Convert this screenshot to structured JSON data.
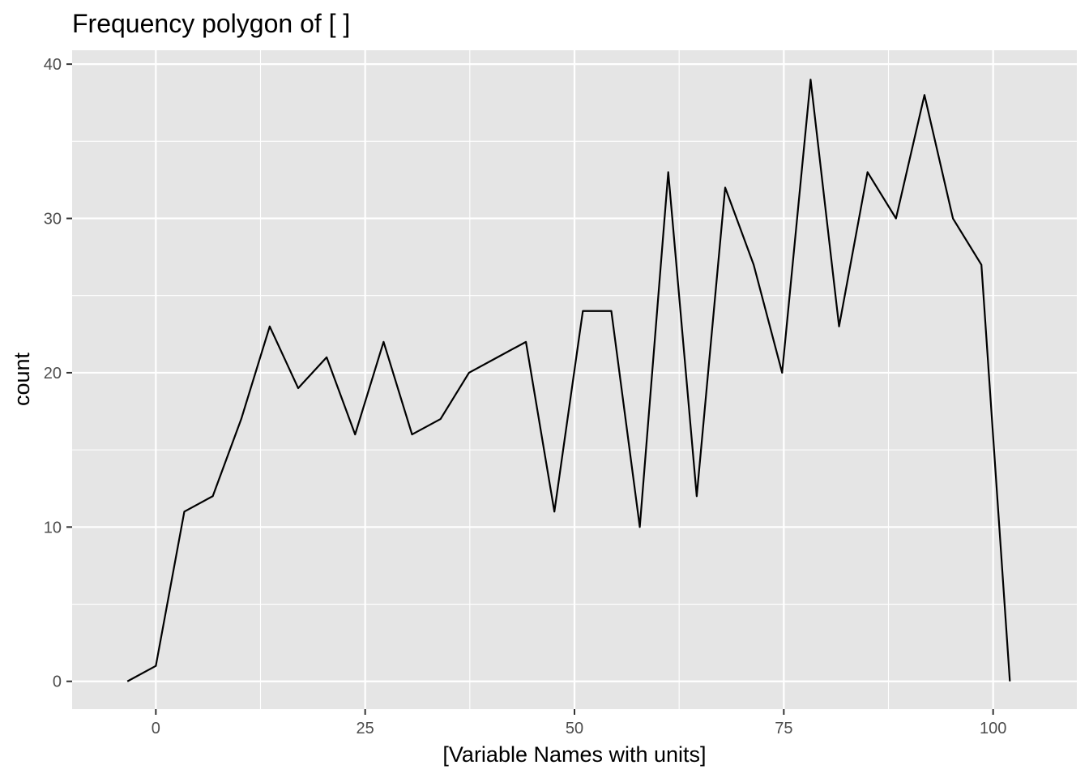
{
  "chart_data": {
    "type": "line",
    "title": "Frequency polygon of [ ]",
    "xlabel": "[Variable Names with units]",
    "ylabel": "count",
    "xlim": [
      -10,
      110
    ],
    "ylim": [
      -1.8,
      40.9
    ],
    "x_ticks": [
      0,
      25,
      50,
      75,
      100
    ],
    "x_tick_labels": [
      "0",
      "25",
      "50",
      "75",
      "100"
    ],
    "x_minor_ticks": [
      12.5,
      37.5,
      62.5,
      87.5
    ],
    "y_ticks": [
      0,
      10,
      20,
      30,
      40
    ],
    "y_tick_labels": [
      "0",
      "10",
      "20",
      "30",
      "40"
    ],
    "y_minor_ticks": [
      5,
      15,
      25,
      35
    ],
    "grid": true,
    "colors": {
      "panel": "#e5e5e5",
      "grid": "#ffffff",
      "line": "#000000",
      "tick": "#333333"
    },
    "series": [
      {
        "x": [
          -3.4,
          0,
          3.4,
          6.8,
          10.2,
          13.6,
          17.0,
          20.4,
          23.8,
          27.2,
          30.6,
          34.0,
          37.4,
          40.8,
          44.2,
          47.6,
          51.0,
          54.4,
          57.8,
          61.2,
          64.6,
          68.0,
          71.4,
          74.8,
          78.2,
          81.6,
          85.0,
          88.4,
          91.8,
          95.2,
          98.6,
          102.0
        ],
        "y": [
          0,
          1,
          11,
          12,
          17,
          23,
          19,
          21,
          16,
          22,
          16,
          17,
          20,
          21,
          22,
          11,
          24,
          24,
          10,
          33,
          12,
          32,
          27,
          20,
          39,
          23,
          33,
          30,
          38,
          30,
          27,
          0
        ]
      }
    ]
  }
}
